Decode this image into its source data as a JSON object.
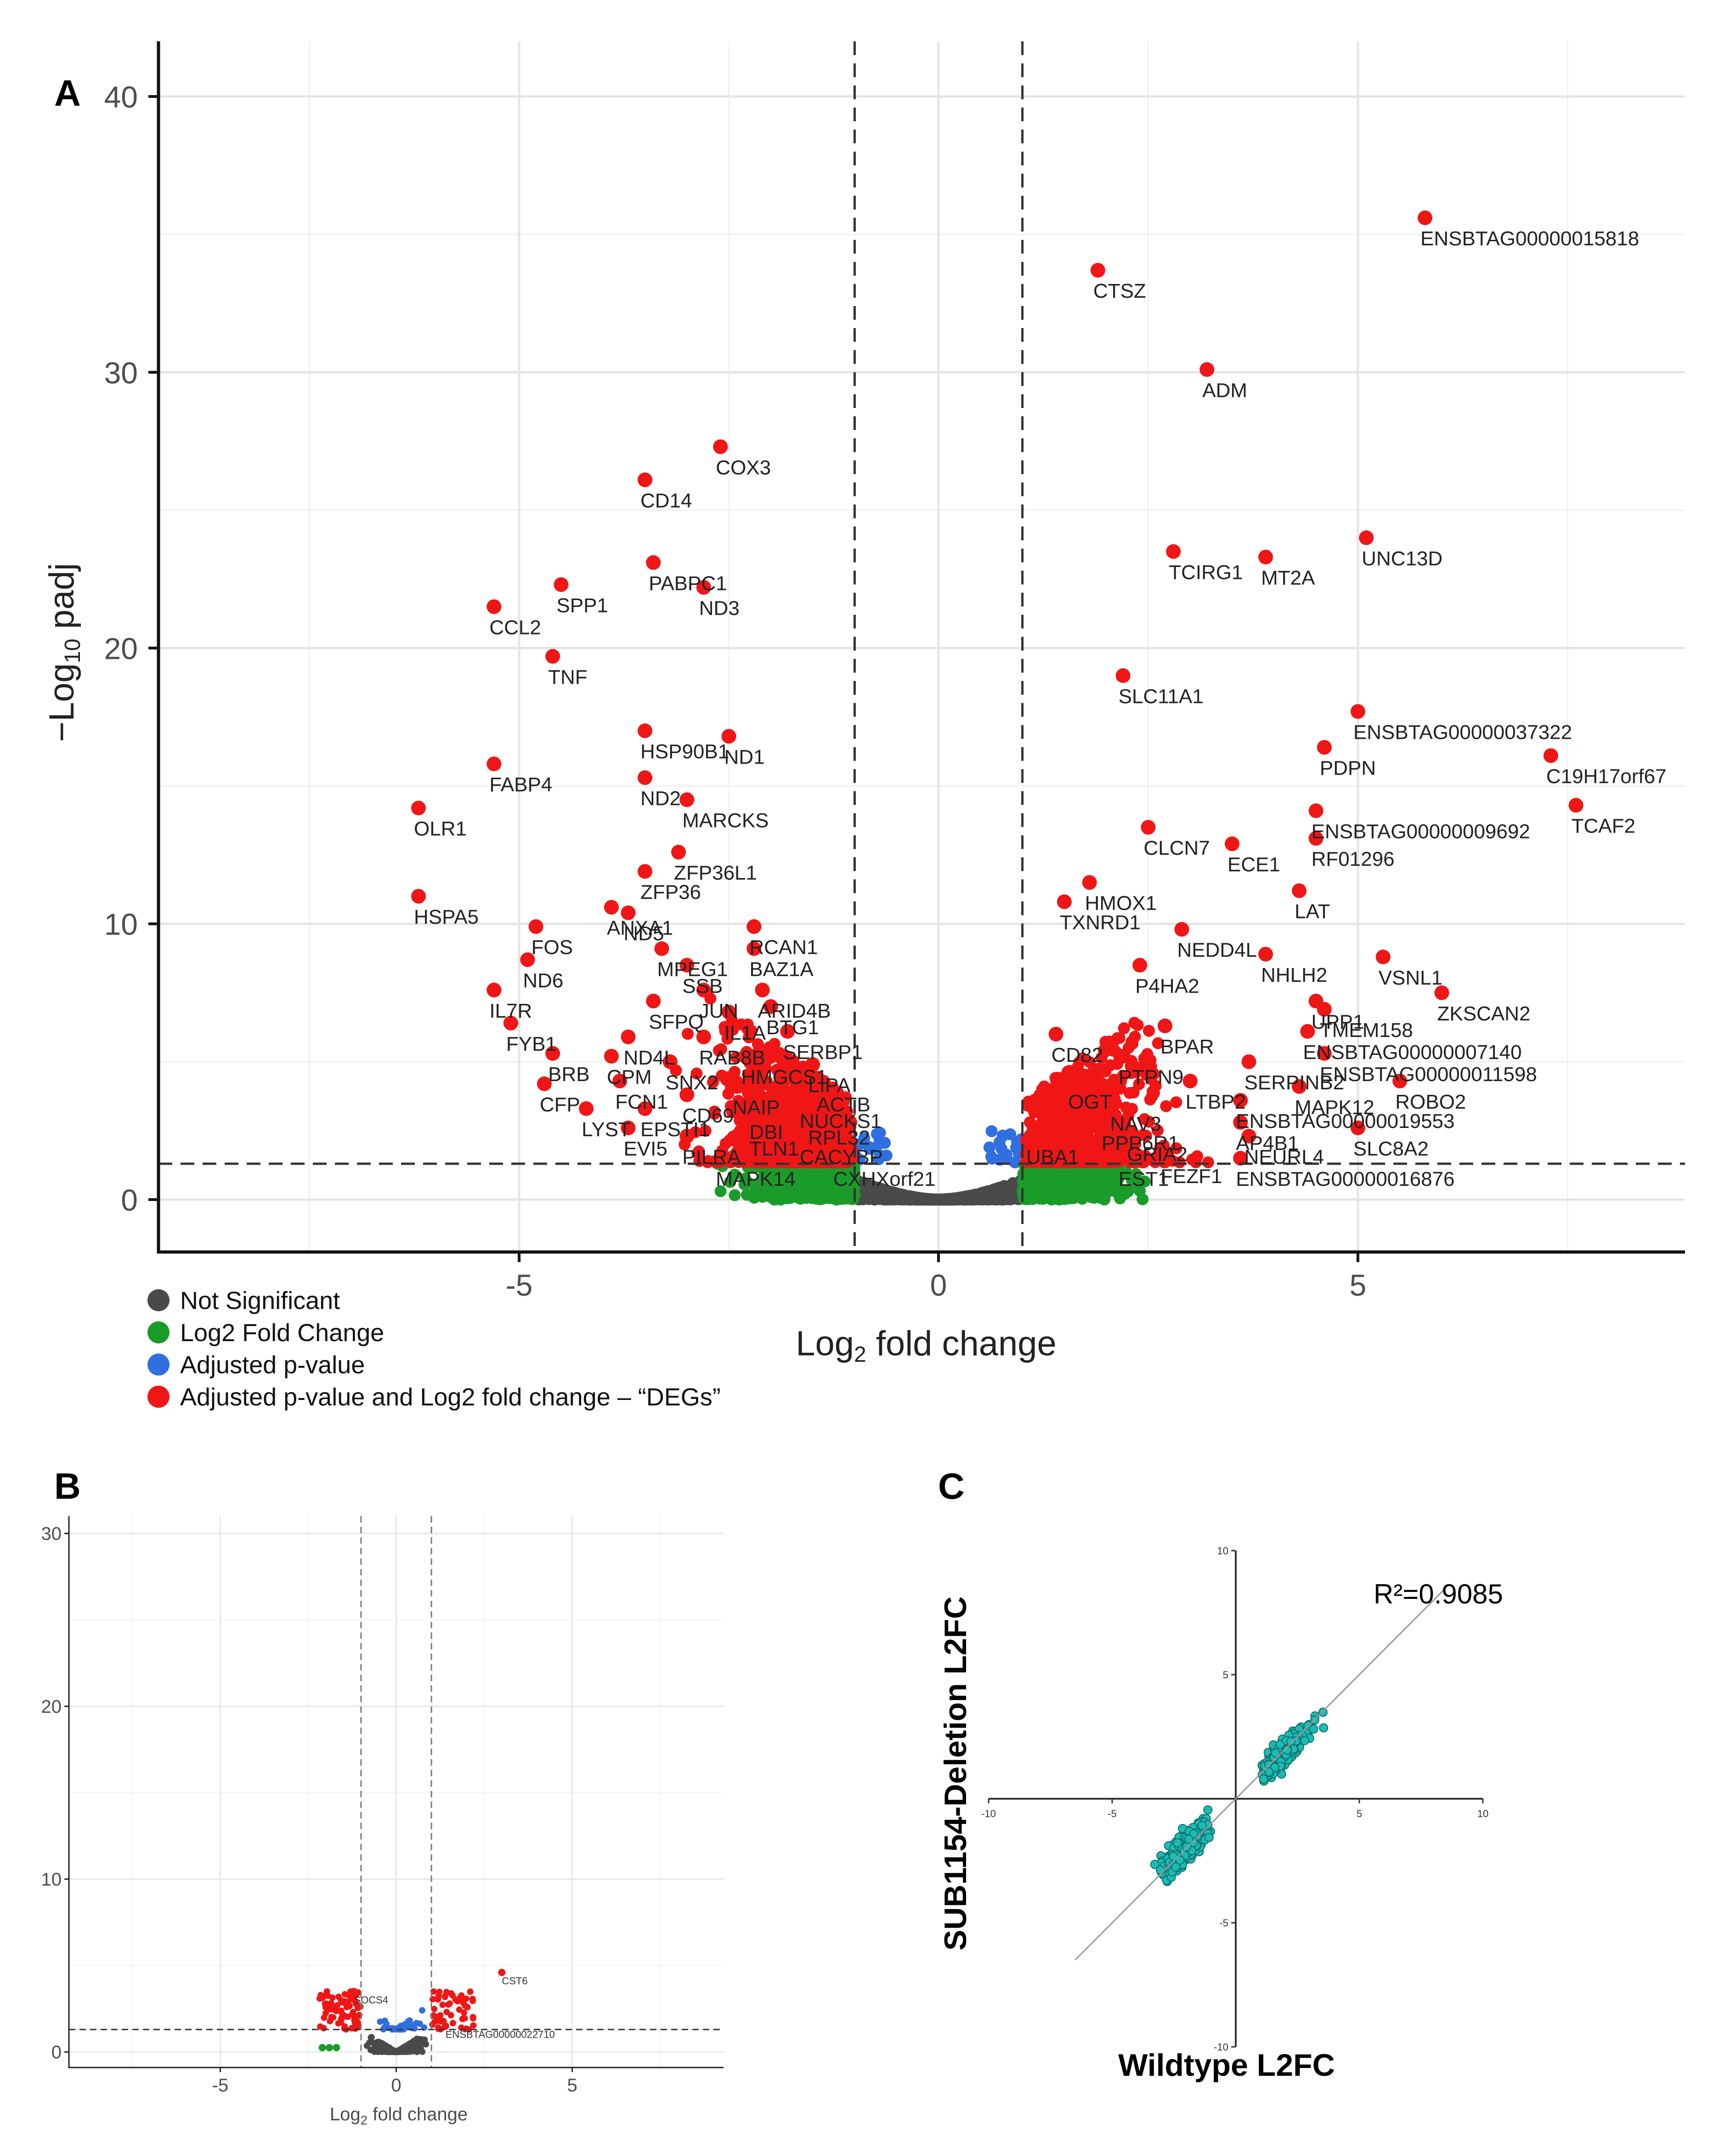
{
  "panels": {
    "a": "A",
    "b": "B",
    "c": "C"
  },
  "chart_data": [
    {
      "id": "panel-A",
      "type": "scatter",
      "title": "",
      "xlabel": "Log2 fold change",
      "ylabel": "−Log10 padj",
      "xlim": [
        -9.3,
        8.9
      ],
      "ylim": [
        -1.9,
        42
      ],
      "x_ticks": [
        -5,
        0,
        5
      ],
      "y_ticks": [
        0,
        10,
        20,
        30,
        40
      ],
      "thresholds": {
        "log2fc": [
          -1,
          1
        ],
        "padj_neglog10": 1.3
      },
      "colors": {
        "ns": "#4a4a4a",
        "fc": "#1a9c2a",
        "pval": "#2f6fe0",
        "deg": "#f01616"
      },
      "legend": [
        {
          "label": "Not Significant",
          "color": "#4a4a4a"
        },
        {
          "label": "Log2 Fold Change",
          "color": "#1a9c2a"
        },
        {
          "label": "Adjusted p-value",
          "color": "#2f6fe0"
        },
        {
          "label": "Adjusted p-value and Log2 fold change – “DEGs”",
          "color": "#f01616"
        }
      ],
      "labeled_points": [
        {
          "gene": "ENSBTAG00000015818",
          "x": 5.8,
          "y": 35.6
        },
        {
          "gene": "CTSZ",
          "x": 1.9,
          "y": 33.7
        },
        {
          "gene": "ADM",
          "x": 3.2,
          "y": 30.1
        },
        {
          "gene": "COX3",
          "x": -2.6,
          "y": 27.3
        },
        {
          "gene": "CD14",
          "x": -3.5,
          "y": 26.1
        },
        {
          "gene": "UNC13D",
          "x": 5.1,
          "y": 24.0
        },
        {
          "gene": "TCIRG1",
          "x": 2.8,
          "y": 23.5
        },
        {
          "gene": "MT2A",
          "x": 3.9,
          "y": 23.3
        },
        {
          "gene": "PABPC1",
          "x": -3.4,
          "y": 23.1
        },
        {
          "gene": "ND3",
          "x": -2.8,
          "y": 22.2
        },
        {
          "gene": "SPP1",
          "x": -4.5,
          "y": 22.3
        },
        {
          "gene": "CCL2",
          "x": -5.3,
          "y": 21.5
        },
        {
          "gene": "TNF",
          "x": -4.6,
          "y": 19.7
        },
        {
          "gene": "SLC11A1",
          "x": 2.2,
          "y": 19.0
        },
        {
          "gene": "ENSBTAG00000037322",
          "x": 5.0,
          "y": 17.7
        },
        {
          "gene": "HSP90B1",
          "x": -3.5,
          "y": 17.0
        },
        {
          "gene": "ND1",
          "x": -2.5,
          "y": 16.8
        },
        {
          "gene": "PDPN",
          "x": 4.6,
          "y": 16.4
        },
        {
          "gene": "C19H17orf67",
          "x": 7.3,
          "y": 16.1
        },
        {
          "gene": "FABP4",
          "x": -5.3,
          "y": 15.8
        },
        {
          "gene": "ND2",
          "x": -3.5,
          "y": 15.3
        },
        {
          "gene": "MARCKS",
          "x": -3.0,
          "y": 14.5
        },
        {
          "gene": "OLR1",
          "x": -6.2,
          "y": 14.2
        },
        {
          "gene": "TCAF2",
          "x": 7.6,
          "y": 14.3
        },
        {
          "gene": "ENSBTAG00000009692",
          "x": 4.5,
          "y": 14.1
        },
        {
          "gene": "CLCN7",
          "x": 2.5,
          "y": 13.5
        },
        {
          "gene": "ECE1",
          "x": 3.5,
          "y": 12.9
        },
        {
          "gene": "RF01296",
          "x": 4.5,
          "y": 13.1
        },
        {
          "gene": "ZFP36L1",
          "x": -3.1,
          "y": 12.6
        },
        {
          "gene": "ZFP36",
          "x": -3.5,
          "y": 11.9
        },
        {
          "gene": "HSPA5",
          "x": -6.2,
          "y": 11.0
        },
        {
          "gene": "HMOX1",
          "x": 1.8,
          "y": 11.5
        },
        {
          "gene": "TXNRD1",
          "x": 1.5,
          "y": 10.8
        },
        {
          "gene": "LAT",
          "x": 4.3,
          "y": 11.2
        },
        {
          "gene": "ND5",
          "x": -3.7,
          "y": 10.4
        },
        {
          "gene": "ANXA1",
          "x": -3.9,
          "y": 10.6
        },
        {
          "gene": "FOS",
          "x": -4.8,
          "y": 9.9
        },
        {
          "gene": "RCAN1",
          "x": -2.2,
          "y": 9.9
        },
        {
          "gene": "NEDD4L",
          "x": 2.9,
          "y": 9.8
        },
        {
          "gene": "MPEG1",
          "x": -3.3,
          "y": 9.1
        },
        {
          "gene": "BAZ1A",
          "x": -2.2,
          "y": 9.1
        },
        {
          "gene": "VSNL1",
          "x": 5.3,
          "y": 8.8
        },
        {
          "gene": "ND6",
          "x": -4.9,
          "y": 8.7
        },
        {
          "gene": "SSB",
          "x": -3.0,
          "y": 8.5
        },
        {
          "gene": "NHLH2",
          "x": 3.9,
          "y": 8.9
        },
        {
          "gene": "P4HA2",
          "x": 2.4,
          "y": 8.5
        },
        {
          "gene": "ZKSCAN2",
          "x": 6.0,
          "y": 7.5
        },
        {
          "gene": "IL7R",
          "x": -5.3,
          "y": 7.6
        },
        {
          "gene": "JUN",
          "x": -2.8,
          "y": 7.6
        },
        {
          "gene": "ARID4B",
          "x": -2.1,
          "y": 7.6
        },
        {
          "gene": "UPP1",
          "x": 4.5,
          "y": 7.2
        },
        {
          "gene": "TMEM158",
          "x": 4.6,
          "y": 6.9
        },
        {
          "gene": "SFPQ",
          "x": -3.4,
          "y": 7.2
        },
        {
          "gene": "BTG1",
          "x": -2.0,
          "y": 7.0
        },
        {
          "gene": "IL1A",
          "x": -2.5,
          "y": 6.8
        },
        {
          "gene": "FYB1",
          "x": -5.1,
          "y": 6.4
        },
        {
          "gene": "SERBP1",
          "x": -1.8,
          "y": 6.1
        },
        {
          "gene": "BPAR",
          "x": 2.7,
          "y": 6.3
        },
        {
          "gene": "ENSBTAG00000007140",
          "x": 4.4,
          "y": 6.1
        },
        {
          "gene": "RAB8B",
          "x": -2.8,
          "y": 5.9
        },
        {
          "gene": "CD82",
          "x": 1.4,
          "y": 6.0
        },
        {
          "gene": "ND4L",
          "x": -3.7,
          "y": 5.9
        },
        {
          "gene": "BRB",
          "x": -4.6,
          "y": 5.3
        },
        {
          "gene": "PTPN9",
          "x": 2.2,
          "y": 5.2
        },
        {
          "gene": "SERPINB2",
          "x": 3.7,
          "y": 5.0
        },
        {
          "gene": "ENSBTAG00000011598",
          "x": 4.6,
          "y": 5.3
        },
        {
          "gene": "CPM",
          "x": -3.9,
          "y": 5.2
        },
        {
          "gene": "HMGCS1",
          "x": -2.3,
          "y": 5.2
        },
        {
          "gene": "SNX2",
          "x": -3.2,
          "y": 5.0
        },
        {
          "gene": "LIPA",
          "x": -1.5,
          "y": 4.9
        },
        {
          "gene": "ROBO2",
          "x": 5.5,
          "y": 4.3
        },
        {
          "gene": "MAPK12",
          "x": 4.3,
          "y": 4.1
        },
        {
          "gene": "LTBP2",
          "x": 3.0,
          "y": 4.3
        },
        {
          "gene": "OGT",
          "x": 1.6,
          "y": 4.3
        },
        {
          "gene": "CFP",
          "x": -4.7,
          "y": 4.2
        },
        {
          "gene": "FCN1",
          "x": -3.8,
          "y": 4.3
        },
        {
          "gene": "NAIP",
          "x": -2.4,
          "y": 4.1
        },
        {
          "gene": "ACTB",
          "x": -1.4,
          "y": 4.2
        },
        {
          "gene": "CD69",
          "x": -3.0,
          "y": 3.8
        },
        {
          "gene": "NUCKS1",
          "x": -1.6,
          "y": 3.6
        },
        {
          "gene": "ENSBTAG00000019553",
          "x": 3.6,
          "y": 3.6
        },
        {
          "gene": "NAV3",
          "x": 2.1,
          "y": 3.5
        },
        {
          "gene": "LYST",
          "x": -4.2,
          "y": 3.3
        },
        {
          "gene": "EPSTI1",
          "x": -3.5,
          "y": 3.3
        },
        {
          "gene": "DBI",
          "x": -2.2,
          "y": 3.2
        },
        {
          "gene": "RPL32",
          "x": -1.5,
          "y": 3.0
        },
        {
          "gene": "PPP6R1",
          "x": 2.0,
          "y": 2.8
        },
        {
          "gene": "AP4B1",
          "x": 3.6,
          "y": 2.8
        },
        {
          "gene": "SLC8A2",
          "x": 5.0,
          "y": 2.6
        },
        {
          "gene": "EVI5",
          "x": -3.7,
          "y": 2.6
        },
        {
          "gene": "TLN1",
          "x": -2.2,
          "y": 2.6
        },
        {
          "gene": "GRIA2",
          "x": 2.3,
          "y": 2.4
        },
        {
          "gene": "NEURL4",
          "x": 3.7,
          "y": 2.3
        },
        {
          "gene": "PILRA",
          "x": -3.0,
          "y": 2.3
        },
        {
          "gene": "UBA1",
          "x": 1.1,
          "y": 2.3
        },
        {
          "gene": "CACYBP",
          "x": -1.6,
          "y": 2.3
        },
        {
          "gene": "MAPK14",
          "x": -2.6,
          "y": 1.5
        },
        {
          "gene": "CXHXorf21",
          "x": -1.2,
          "y": 1.5
        },
        {
          "gene": "FEZF1",
          "x": 2.7,
          "y": 1.6
        },
        {
          "gene": "EST1",
          "x": 2.2,
          "y": 1.5
        },
        {
          "gene": "ENSBTAG00000016876",
          "x": 3.6,
          "y": 1.5
        }
      ]
    },
    {
      "id": "panel-B",
      "type": "scatter",
      "title": "",
      "xlabel": "Log2 fold change",
      "ylabel": "",
      "xlim": [
        -9.3,
        9.3
      ],
      "ylim": [
        -0.9,
        31
      ],
      "x_ticks": [
        -5,
        0,
        5
      ],
      "y_ticks": [
        0,
        10,
        20,
        30
      ],
      "thresholds": {
        "log2fc": [
          -1,
          1
        ],
        "padj_neglog10": 1.3
      },
      "labeled_points": [
        {
          "gene": "CST6",
          "x": 3.0,
          "y": 4.6
        },
        {
          "gene": "SOCS4",
          "x": -1.2,
          "y": 3.5
        },
        {
          "gene": "ENSBTAG00000022710",
          "x": 1.4,
          "y": 1.5
        }
      ]
    },
    {
      "id": "panel-C",
      "type": "scatter",
      "title": "",
      "xlabel": "Wildtype L2FC",
      "ylabel": "SUB1154-Deletion L2FC",
      "xlim": [
        -10,
        10
      ],
      "ylim": [
        -10,
        10
      ],
      "x_ticks": [
        -10,
        -5,
        5,
        10
      ],
      "y_ticks": [
        -10,
        -5,
        5,
        10
      ],
      "annotation": "R²=0.9085",
      "regression": {
        "slope": 1.0,
        "intercept": 0.0
      },
      "point_color": "#1bbcb5"
    }
  ]
}
